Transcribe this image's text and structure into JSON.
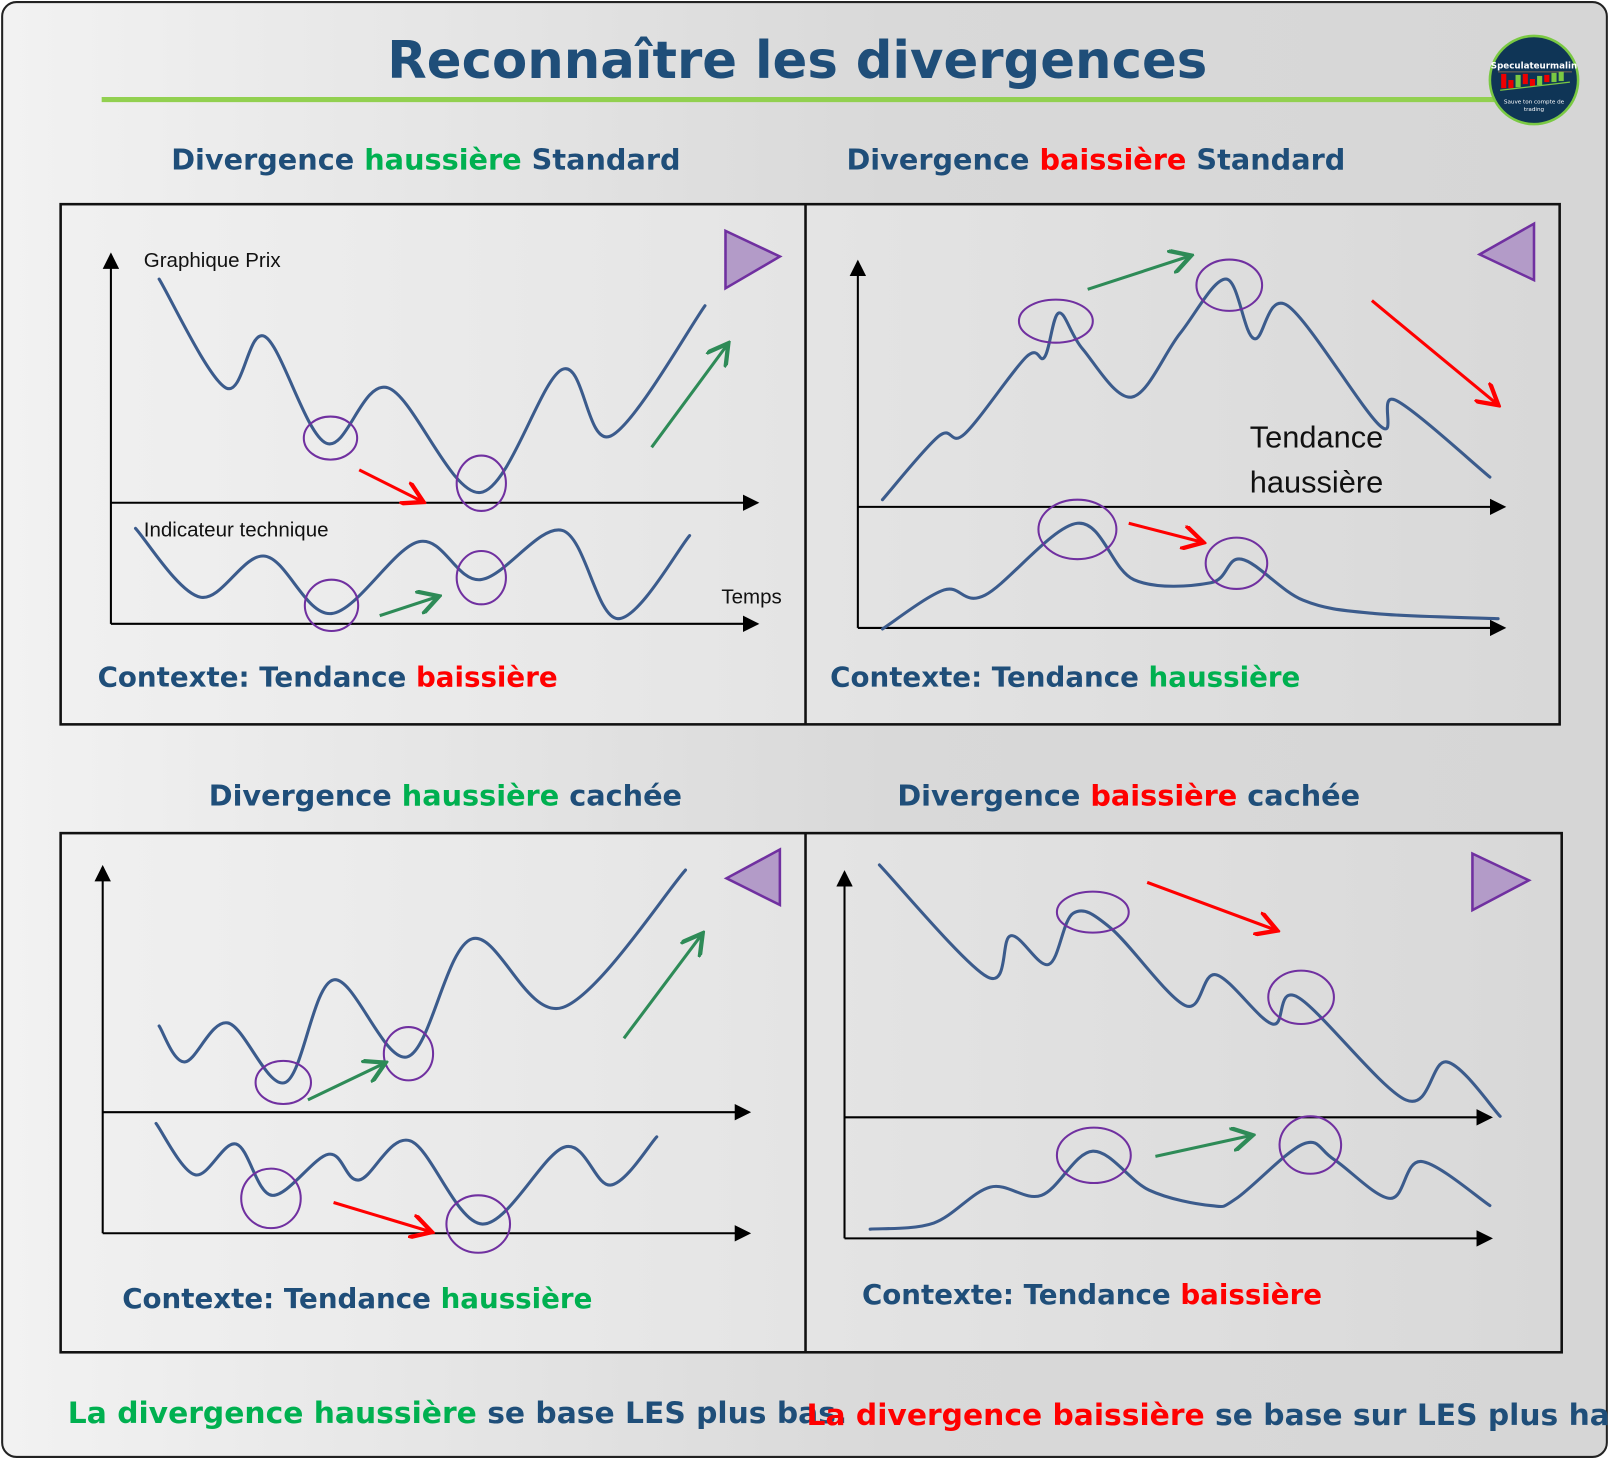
{
  "title": "Reconnaître les divergences",
  "logo": {
    "name": "Speculateurmalin",
    "tagline": "Sauve ton compte de trading"
  },
  "colors": {
    "navy": "#1f4e79",
    "green": "#00b050",
    "red": "#ff0000",
    "curve": "#3b5b8c",
    "circle": "#7030a0",
    "triangle": "#b39bc8",
    "rule": "#92d050"
  },
  "panels": [
    {
      "title": {
        "a": "Divergence ",
        "b": "haussière",
        "c": " Standard"
      },
      "context": {
        "a": "Contexte: Tendance ",
        "b": "baissière"
      },
      "price_label": "Graphique Prix",
      "indicator_label": "Indicateur technique",
      "time_label": "Temps"
    },
    {
      "title": {
        "a": "Divergence ",
        "b": "baissière",
        "c": " Standard"
      },
      "context": {
        "a": "Contexte: Tendance ",
        "b": "haussière"
      },
      "trend_label": [
        "Tendance",
        "haussière"
      ]
    },
    {
      "title": {
        "a": "Divergence ",
        "b": "haussière",
        "c": " cachée"
      },
      "context": {
        "a": "Contexte: Tendance ",
        "b": "haussière"
      }
    },
    {
      "title": {
        "a": "Divergence ",
        "b": "baissière",
        "c": " cachée"
      },
      "context": {
        "a": "Contexte: Tendance ",
        "b": "baissière"
      }
    }
  ],
  "footer": {
    "left": {
      "a": "La divergence haussière",
      "b": " se base LES plus bas."
    },
    "right": {
      "a": "La divergence baissière",
      "b": " se base sur LES plus hauts."
    }
  }
}
